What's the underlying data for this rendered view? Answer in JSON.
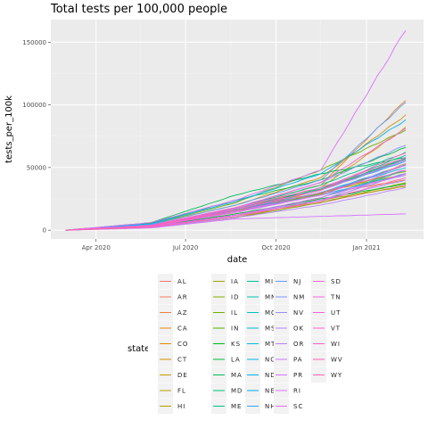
{
  "chart_data": {
    "type": "line",
    "title": "Total tests per 100,000 people",
    "xlabel": "date",
    "ylabel": "tests_per_100k",
    "x_ticks": [
      "Apr 2020",
      "Jul 2020",
      "Oct 2020",
      "Jan 2021"
    ],
    "y_ticks": [
      "0",
      "50000",
      "100000",
      "150000"
    ],
    "xlim": [
      "2020-02-15",
      "2021-02-28"
    ],
    "ylim": [
      -7000,
      168000
    ],
    "grid": true,
    "legend_title": "state",
    "legend_position": "bottom",
    "x_start": "2020-03-01",
    "x_end": "2021-02-10",
    "series": [
      {
        "name": "AL",
        "color": "#F8766D",
        "values": [
          0,
          2800,
          12000,
          22000,
          36000
        ]
      },
      {
        "name": "AR",
        "color": "#F47C5A",
        "values": [
          0,
          3200,
          15000,
          28000,
          53000
        ]
      },
      {
        "name": "AZ",
        "color": "#EE8044",
        "values": [
          0,
          3000,
          16000,
          29000,
          40000
        ]
      },
      {
        "name": "CA",
        "color": "#E7861B",
        "values": [
          0,
          4000,
          18000,
          36000,
          104000
        ]
      },
      {
        "name": "CO",
        "color": "#DE8C00",
        "values": [
          0,
          3400,
          15000,
          32000,
          58000
        ]
      },
      {
        "name": "CT",
        "color": "#D39200",
        "values": [
          0,
          4500,
          20000,
          42000,
          92000
        ]
      },
      {
        "name": "DE",
        "color": "#C79800",
        "values": [
          0,
          3500,
          17000,
          34000,
          82000
        ]
      },
      {
        "name": "FL",
        "color": "#B79F00",
        "values": [
          0,
          3000,
          16000,
          30000,
          45000
        ]
      },
      {
        "name": "HI",
        "color": "#AAA300",
        "values": [
          0,
          2000,
          10000,
          24000,
          35000
        ]
      },
      {
        "name": "IA",
        "color": "#99A800",
        "values": [
          0,
          3000,
          15000,
          30000,
          47000
        ]
      },
      {
        "name": "ID",
        "color": "#87AC00",
        "values": [
          0,
          2200,
          10000,
          22000,
          38000
        ]
      },
      {
        "name": "IL",
        "color": "#72B000",
        "values": [
          0,
          4500,
          22000,
          48000,
          80000
        ]
      },
      {
        "name": "IN",
        "color": "#53B400",
        "values": [
          0,
          3000,
          15000,
          29000,
          52000
        ]
      },
      {
        "name": "KS",
        "color": "#00B81F",
        "values": [
          0,
          2800,
          13000,
          25000,
          37000
        ]
      },
      {
        "name": "LA",
        "color": "#00BA38",
        "values": [
          0,
          5500,
          24000,
          40000,
          66000
        ]
      },
      {
        "name": "MA",
        "color": "#00BC59",
        "values": [
          0,
          6000,
          28000,
          45000,
          58000
        ]
      },
      {
        "name": "MD",
        "color": "#00BE72",
        "values": [
          0,
          3500,
          17000,
          33000,
          57000
        ]
      },
      {
        "name": "ME",
        "color": "#00C087",
        "values": [
          0,
          3000,
          16000,
          33000,
          60000
        ]
      },
      {
        "name": "MI",
        "color": "#00C19A",
        "values": [
          0,
          3800,
          18000,
          36000,
          62000
        ]
      },
      {
        "name": "MN",
        "color": "#00C1AB",
        "values": [
          0,
          3500,
          16000,
          32000,
          57000
        ]
      },
      {
        "name": "MO",
        "color": "#00C0BB",
        "values": [
          0,
          2600,
          12000,
          24000,
          45000
        ]
      },
      {
        "name": "MS",
        "color": "#00BECB",
        "values": [
          0,
          3200,
          15000,
          28000,
          45000
        ]
      },
      {
        "name": "MT",
        "color": "#00BBD9",
        "values": [
          0,
          2400,
          12000,
          26000,
          48000
        ]
      },
      {
        "name": "NC",
        "color": "#00B6E6",
        "values": [
          0,
          3200,
          16000,
          30000,
          50000
        ]
      },
      {
        "name": "ND",
        "color": "#00B0F6",
        "values": [
          0,
          5000,
          23000,
          45000,
          88000
        ]
      },
      {
        "name": "NE",
        "color": "#00A9FF",
        "values": [
          0,
          3500,
          17000,
          32000,
          55000
        ]
      },
      {
        "name": "NH",
        "color": "#35A2FF",
        "values": [
          0,
          3200,
          15000,
          30000,
          52000
        ]
      },
      {
        "name": "NJ",
        "color": "#619CFF",
        "values": [
          0,
          4500,
          20000,
          40000,
          102000
        ]
      },
      {
        "name": "NM",
        "color": "#7F96FF",
        "values": [
          0,
          3800,
          18000,
          38000,
          68000
        ]
      },
      {
        "name": "NV",
        "color": "#968FFF",
        "values": [
          0,
          3000,
          15000,
          28000,
          44000
        ]
      },
      {
        "name": "OK",
        "color": "#A989FF",
        "values": [
          0,
          2600,
          12000,
          24000,
          40000
        ]
      },
      {
        "name": "OR",
        "color": "#B983FF",
        "values": [
          0,
          2200,
          10000,
          20000,
          34000
        ]
      },
      {
        "name": "PA",
        "color": "#C77CFF",
        "values": [
          0,
          2500,
          12000,
          24000,
          45000
        ]
      },
      {
        "name": "PR",
        "color": "#D376FF",
        "values": [
          0,
          1800,
          9000,
          11000,
          13000
        ]
      },
      {
        "name": "RI",
        "color": "#DE71F9",
        "values": [
          0,
          6000,
          24000,
          48000,
          160000
        ]
      },
      {
        "name": "SC",
        "color": "#E76BF3",
        "values": [
          0,
          3000,
          14000,
          28000,
          52000
        ]
      },
      {
        "name": "SD",
        "color": "#EF67EB",
        "values": [
          0,
          2500,
          12000,
          26000,
          45000
        ]
      },
      {
        "name": "TN",
        "color": "#F564E3",
        "values": [
          0,
          3800,
          18000,
          34000,
          58000
        ]
      },
      {
        "name": "UT",
        "color": "#FA62DB",
        "values": [
          0,
          3500,
          17000,
          32000,
          56000
        ]
      },
      {
        "name": "VT",
        "color": "#FD61D1",
        "values": [
          0,
          3600,
          18000,
          38000,
          81000
        ]
      },
      {
        "name": "WI",
        "color": "#FF61C7",
        "values": [
          0,
          3000,
          15000,
          30000,
          48000
        ]
      },
      {
        "name": "WV",
        "color": "#FF63B6",
        "values": [
          0,
          3400,
          16000,
          32000,
          62000
        ]
      },
      {
        "name": "WY",
        "color": "#FF65AC",
        "values": [
          0,
          2300,
          11000,
          23000,
          42000
        ]
      }
    ]
  }
}
